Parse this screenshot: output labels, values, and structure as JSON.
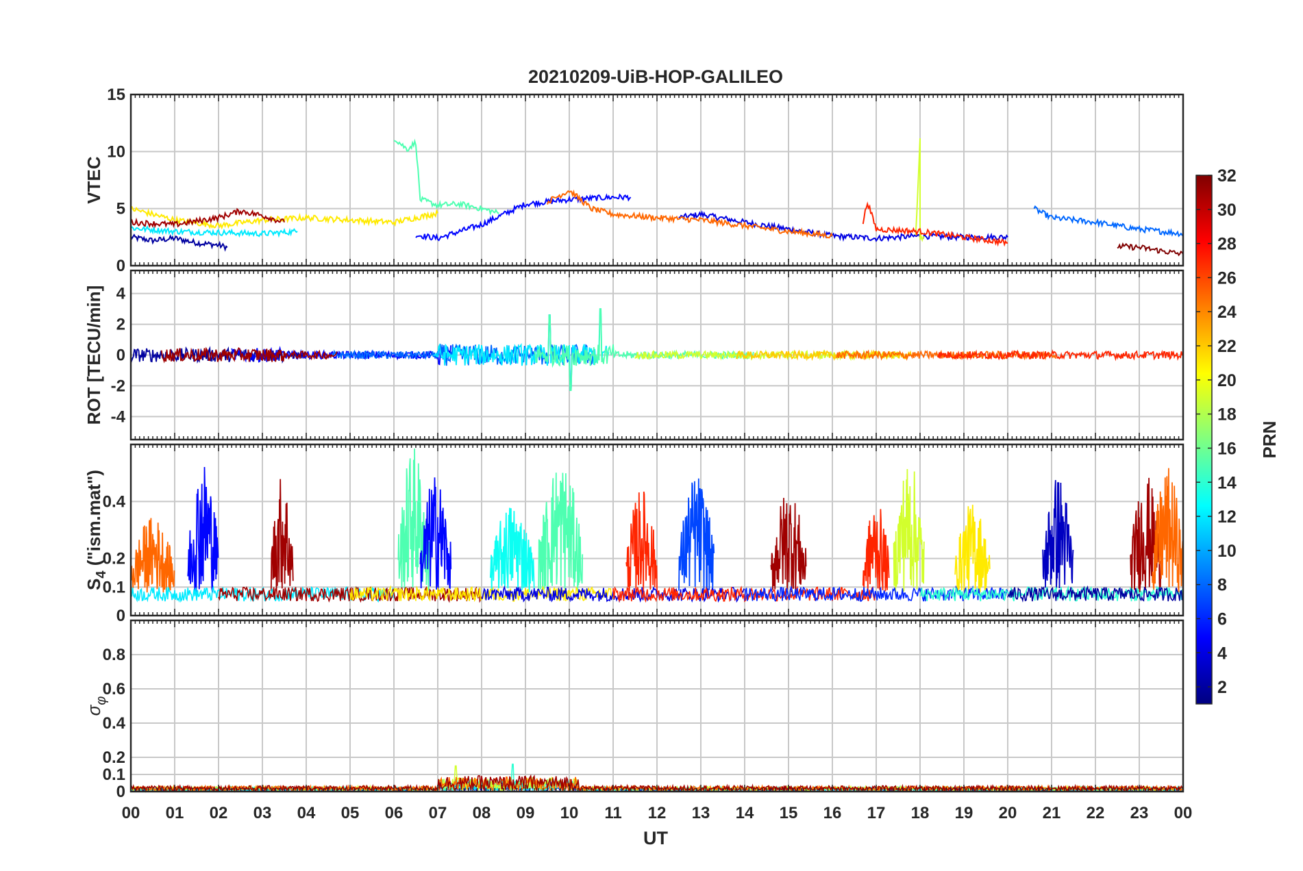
{
  "chart_data": {
    "type": "line",
    "title": "20210209-UiB-HOP-GALILEO",
    "xlabel": "UT",
    "x_range_hours": [
      0,
      24
    ],
    "x_tick_labels": [
      "00",
      "01",
      "02",
      "03",
      "04",
      "05",
      "06",
      "07",
      "08",
      "09",
      "10",
      "11",
      "12",
      "13",
      "14",
      "15",
      "16",
      "17",
      "18",
      "19",
      "20",
      "21",
      "22",
      "23",
      "00"
    ],
    "colorbar": {
      "label": "PRN",
      "range": [
        1,
        32
      ],
      "tick_labels": [
        "2",
        "4",
        "6",
        "8",
        "10",
        "12",
        "14",
        "16",
        "18",
        "20",
        "22",
        "24",
        "26",
        "28",
        "30",
        "32"
      ]
    },
    "panels": [
      {
        "id": "vtec",
        "ylabel": "VTEC",
        "ylim": [
          0,
          15
        ],
        "y_tick_labels": [
          "0",
          "5",
          "10",
          "15"
        ],
        "approx_baseline": "values mostly 2–6 TECU, peak near 09–10 UT (~5.5), a spike to ~11 at 06 UT (PRN 15) and at 18 UT (PRN 19)",
        "series": [
          {
            "prn": 2,
            "x": [
              0,
              0.5,
              1,
              1.5,
              2,
              2.2
            ],
            "y": [
              2.5,
              2.2,
              2.4,
              2.0,
              1.8,
              1.6
            ]
          },
          {
            "prn": 4,
            "x": [
              12.5,
              13,
              14,
              15,
              16,
              17,
              18,
              19,
              20
            ],
            "y": [
              4.2,
              4.5,
              3.8,
              3.2,
              2.6,
              2.4,
              2.6,
              2.5,
              2.5
            ]
          },
          {
            "prn": 5,
            "x": [
              6.5,
              7,
              8,
              9,
              10,
              11,
              11.4
            ],
            "y": [
              2.7,
              2.4,
              3.6,
              5.4,
              5.8,
              6.0,
              6.0
            ]
          },
          {
            "prn": 8,
            "x": [
              20.6,
              21,
              21.5,
              22,
              22.5,
              23,
              23.5,
              24
            ],
            "y": [
              5.0,
              4.2,
              4.0,
              3.8,
              3.5,
              3.2,
              3.0,
              2.8
            ]
          },
          {
            "prn": 12,
            "x": [
              0,
              1,
              2,
              3,
              3.8
            ],
            "y": [
              3.3,
              3.0,
              2.9,
              2.8,
              3.0
            ]
          },
          {
            "prn": 15,
            "x": [
              6,
              6.3,
              6.5,
              6.6,
              7,
              7.5,
              8,
              8.4
            ],
            "y": [
              11.2,
              10.2,
              10.8,
              5.8,
              5.3,
              5.4,
              5.0,
              4.6
            ]
          },
          {
            "prn": 19,
            "x": [
              17.9,
              18,
              18,
              18.1
            ],
            "y": [
              2.6,
              11.0,
              2.5,
              2.5
            ]
          },
          {
            "prn": 21,
            "x": [
              0,
              1,
              2,
              3,
              4,
              5,
              6,
              7
            ],
            "y": [
              5.0,
              4.0,
              3.5,
              4.0,
              4.2,
              4.0,
              3.8,
              4.6
            ]
          },
          {
            "prn": 25,
            "x": [
              9.5,
              9.8,
              10,
              10.5,
              11,
              12,
              13,
              14,
              15,
              16
            ],
            "y": [
              5.6,
              6.2,
              6.6,
              5.0,
              4.5,
              4.2,
              4.0,
              3.5,
              3.0,
              2.6
            ]
          },
          {
            "prn": 27,
            "x": [
              16.7,
              16.8,
              17,
              18,
              19,
              20
            ],
            "y": [
              3.8,
              5.6,
              3.2,
              3.0,
              2.5,
              2.0
            ]
          },
          {
            "prn": 31,
            "x": [
              0,
              1,
              2,
              2.5,
              3,
              3.5
            ],
            "y": [
              3.8,
              3.6,
              4.2,
              4.8,
              4.4,
              3.8
            ]
          },
          {
            "prn": 32,
            "x": [
              22.5,
              23,
              23.5,
              24
            ],
            "y": [
              1.7,
              1.6,
              1.3,
              1.0
            ]
          }
        ]
      },
      {
        "id": "rot",
        "ylabel": "ROT [TECU/min]",
        "ylim": [
          -5.5,
          5.5
        ],
        "y_tick_labels": [
          "-4",
          "-2",
          "0",
          "2",
          "4"
        ],
        "approx_baseline": "ROT fluctuates around 0 (±0.5) all day; spikes to ~2.6 at 09:30 UT, ~3.0 at 10:40 UT, down to ~-2.3 at 10:00 UT"
      },
      {
        "id": "s4",
        "ylabel": "S4 (\"ism.mat\")",
        "ylabel_main": "S",
        "ylabel_sub": "4",
        "ylabel_rest": " (\"ism.mat\")",
        "ylim": [
          0,
          0.6
        ],
        "y_tick_labels": [
          "0",
          "0.1",
          "0.2",
          "0.4"
        ],
        "approx_baseline": "background S4 ~0.05–0.1; bursts to 0.3–0.6 at 01–02, 03–04, 06–07, 08–10, 12–13, 15, 17–18, 19, 21, 23 UT"
      },
      {
        "id": "sigma_phi",
        "ylabel": "σφ",
        "ylabel_main": "σ",
        "ylabel_sub": "φ",
        "ylim": [
          0,
          1
        ],
        "y_tick_labels": [
          "0",
          "0.1",
          "0.2",
          "0.4",
          "0.6",
          "0.8"
        ],
        "approx_baseline": "σφ mostly 0.01–0.05; small peaks ~0.15 near 07:30 UT and 08:40–09:30 UT"
      }
    ]
  }
}
